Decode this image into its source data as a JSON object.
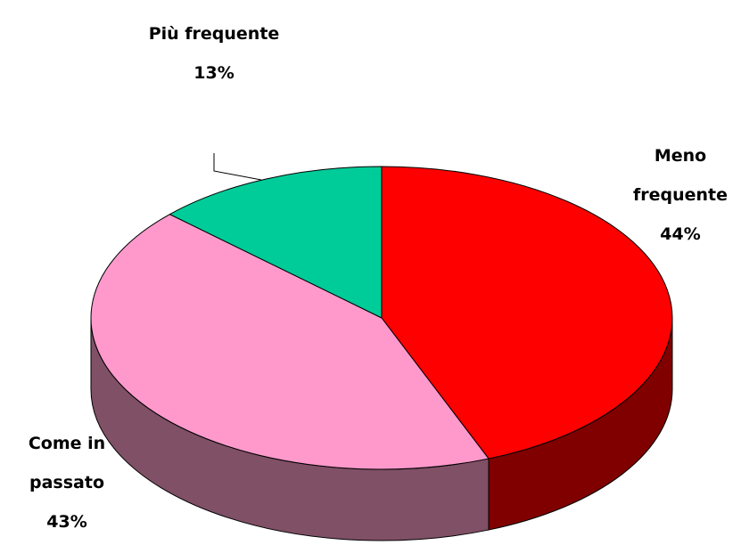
{
  "chart_data": {
    "type": "pie",
    "categories": [
      "Meno frequente",
      "Come in passato",
      "Più frequente"
    ],
    "values": [
      44,
      43,
      13
    ],
    "value_labels": [
      "44%",
      "43%",
      "13%"
    ],
    "colors": [
      "#ff0000",
      "#ff99cc",
      "#00cc99"
    ],
    "side_colors": [
      "#800000",
      "#805066",
      "#00664c"
    ]
  }
}
